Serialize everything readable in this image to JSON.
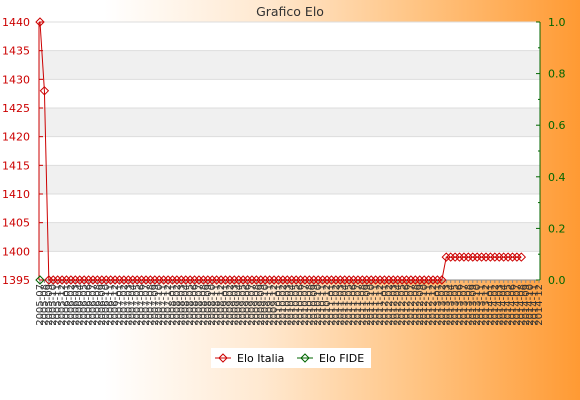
{
  "chart_data": {
    "type": "line",
    "title": "Grafico Elo",
    "xlabel": "",
    "ylabel": "",
    "y_left": {
      "ylim": [
        1395,
        1440
      ],
      "ticks": [
        1395,
        1400,
        1405,
        1410,
        1415,
        1420,
        1425,
        1430,
        1435,
        1440
      ]
    },
    "y_right": {
      "ylim": [
        0,
        1.0
      ],
      "ticks": [
        "0.0",
        "0.2",
        "0.4",
        "0.6",
        "0.8",
        "1.0"
      ]
    },
    "x_tick_labels": [
      "2005-07",
      "2005-08",
      "2005-09",
      "2005-10",
      "2005-11",
      "2005-12",
      "2006-01",
      "2006-02",
      "2006-03",
      "2006-04",
      "2006-05",
      "2006-06",
      "2006-07",
      "2006-08",
      "2006-09",
      "2006-10",
      "2006-11",
      "2006-12",
      "2007-01",
      "2007-02",
      "2007-03",
      "2007-04",
      "2007-05",
      "2007-06",
      "2007-07",
      "2007-08",
      "2007-09",
      "2007-10",
      "2007-11",
      "2007-12",
      "2008-01",
      "2008-02",
      "2008-03",
      "2008-04",
      "2008-05",
      "2008-06",
      "2008-07",
      "2008-08",
      "2008-09",
      "2008-10",
      "2008-11",
      "2008-12",
      "2009-01",
      "2009-02",
      "2009-03",
      "2009-04",
      "2009-05",
      "2009-06",
      "2009-07",
      "2009-08",
      "2009-09",
      "2009-10",
      "2009-11",
      "2009-12",
      "2010-01",
      "2010-02",
      "2010-03",
      "2010-04",
      "2010-05",
      "2010-06",
      "2010-07",
      "2010-08",
      "2010-09",
      "2010-10",
      "2010-11",
      "2010-12",
      "2011-01",
      "2011-02",
      "2011-03",
      "2011-04",
      "2011-05",
      "2011-06",
      "2011-07",
      "2011-08",
      "2011-09",
      "2011-10",
      "2011-11",
      "2011-12",
      "2012-01",
      "2012-02",
      "2012-03",
      "2012-04",
      "2012-05",
      "2012-06",
      "2012-07",
      "2012-08",
      "2012-09",
      "2012-10",
      "2012-11",
      "2012-12",
      "2013-01",
      "2013-02",
      "2013-03",
      "2013-04",
      "2013-05",
      "2013-06",
      "2013-07",
      "2013-08",
      "2013-09",
      "2013-10",
      "2013-11",
      "2013-12",
      "2014-01",
      "2014-02",
      "2014-03",
      "2014-04",
      "2014-05",
      "2014-06",
      "2014-07",
      "2014-08",
      "2014-09",
      "2014-10",
      "2014-11",
      "2014-12"
    ],
    "series": [
      {
        "name": "Elo Italia",
        "color": "#cc0000",
        "axis": "left",
        "values": [
          1440,
          1428,
          1395,
          1395,
          1395,
          1395,
          1395,
          1395,
          1395,
          1395,
          1395,
          1395,
          1395,
          1395,
          1395,
          1395,
          1395,
          1395,
          1395,
          1395,
          1395,
          1395,
          1395,
          1395,
          1395,
          1395,
          1395,
          1395,
          1395,
          1395,
          1395,
          1395,
          1395,
          1395,
          1395,
          1395,
          1395,
          1395,
          1395,
          1395,
          1395,
          1395,
          1395,
          1395,
          1395,
          1395,
          1395,
          1395,
          1395,
          1395,
          1395,
          1395,
          1395,
          1395,
          1395,
          1395,
          1395,
          1395,
          1395,
          1395,
          1395,
          1395,
          1395,
          1395,
          1395,
          1395,
          1395,
          1395,
          1395,
          1395,
          1395,
          1395,
          1395,
          1395,
          1395,
          1395,
          1395,
          1395,
          1395,
          1395,
          1395,
          1395,
          1395,
          1395,
          1395,
          1395,
          1395,
          1395,
          1395,
          1395,
          1395,
          1395,
          1399,
          1399,
          1399,
          1399,
          1399,
          1399,
          1399,
          1399,
          1399,
          1399,
          1399,
          1399,
          1399,
          1399,
          1399,
          1399,
          1399,
          1399
        ]
      },
      {
        "name": "Elo FIDE",
        "color": "#006600",
        "axis": "right",
        "values": [
          0
        ]
      }
    ],
    "grid": true,
    "legend": "bottom-center"
  }
}
